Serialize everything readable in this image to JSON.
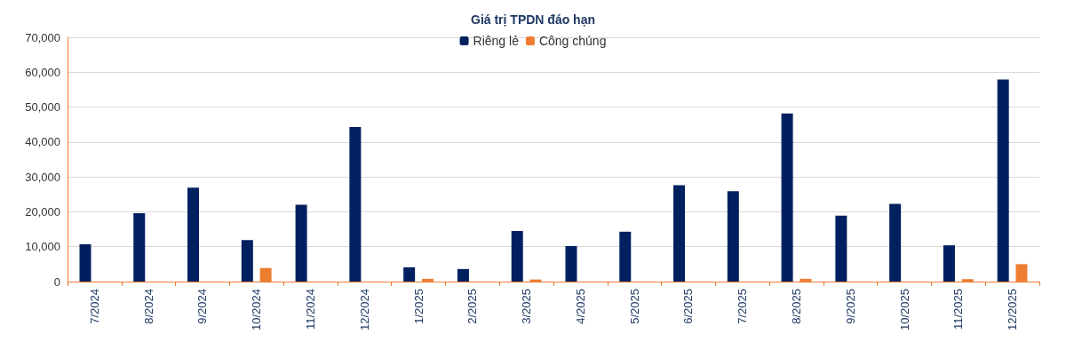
{
  "chart_data": {
    "type": "bar",
    "title": "Giá trị TPDN đáo hạn",
    "categories": [
      "7/2024",
      "8/2024",
      "9/2024",
      "10/2024",
      "11/2024",
      "12/2024",
      "1/2025",
      "2/2025",
      "3/2025",
      "4/2025",
      "5/2025",
      "6/2025",
      "7/2025",
      "8/2025",
      "9/2025",
      "10/2025",
      "11/2025",
      "12/2025"
    ],
    "series": [
      {
        "name": "Riêng lẻ",
        "color": "#002060",
        "values": [
          10700,
          19600,
          26900,
          11900,
          22000,
          44300,
          4100,
          3600,
          14500,
          10200,
          14300,
          27600,
          25900,
          48200,
          18900,
          22300,
          10400,
          57900
        ]
      },
      {
        "name": "Công chúng",
        "color": "#ed7d31",
        "values": [
          0,
          0,
          0,
          3900,
          0,
          0,
          800,
          null,
          600,
          0,
          0,
          0,
          0,
          800,
          0,
          0,
          700,
          5000
        ]
      }
    ],
    "ylim": [
      0,
      70000
    ],
    "yticks": [
      0,
      {
        "value": 10000,
        "label": "10,000"
      },
      {
        "value": 20000,
        "label": "20,000"
      },
      {
        "value": 30000,
        "label": "30,000"
      },
      {
        "value": 40000,
        "label": "40,000"
      },
      {
        "value": 50000,
        "label": "50,000"
      },
      {
        "value": 60000,
        "label": "60,000"
      },
      {
        "value": 70000,
        "label": "70,000"
      }
    ],
    "grid": "y",
    "legend": "top"
  }
}
